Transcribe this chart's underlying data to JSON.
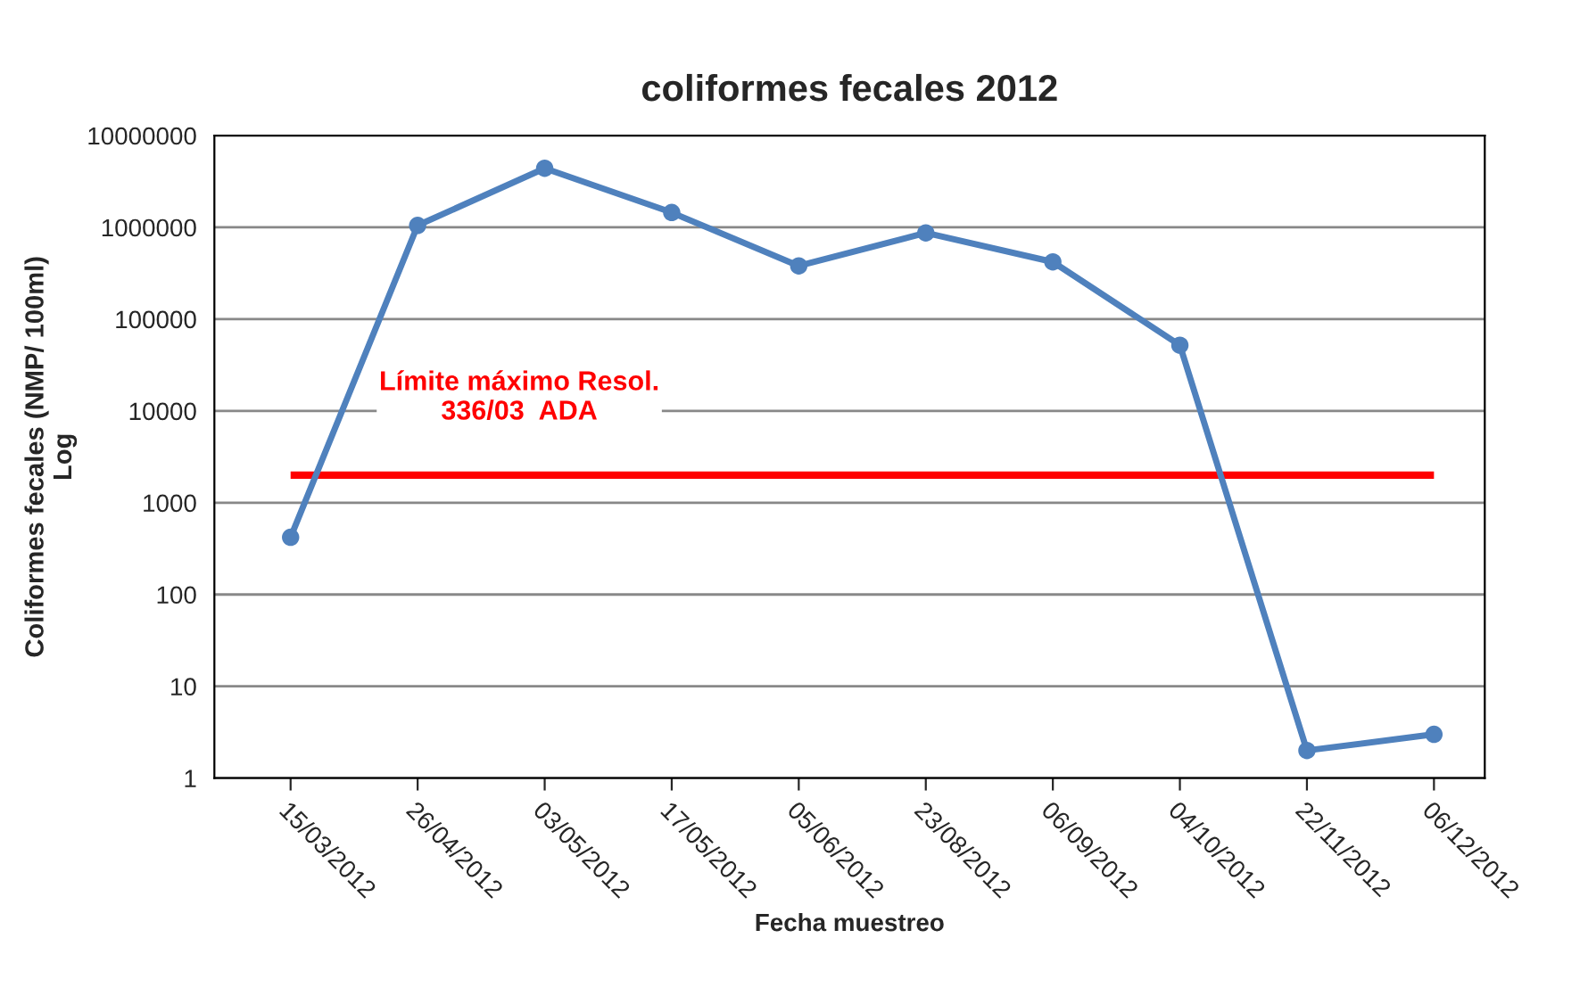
{
  "chart_data": {
    "type": "line",
    "title": "coliformes fecales 2012",
    "xlabel": "Fecha muestreo",
    "ylabel": "Coliformes fecales (NMP/ 100ml)\nLog",
    "categories": [
      "15/03/2012",
      "26/04/2012",
      "03/05/2012",
      "17/05/2012",
      "05/06/2012",
      "23/08/2012",
      "06/09/2012",
      "04/10/2012",
      "22/11/2012",
      "06/12/2012"
    ],
    "series": [
      {
        "color": "#4f81bd",
        "values": [
          420,
          1050000,
          4400000,
          1450000,
          380000,
          870000,
          420000,
          52000,
          2,
          3
        ]
      }
    ],
    "log": true,
    "ylim": [
      1,
      10000000
    ],
    "yticks": [
      1,
      10,
      100,
      1000,
      10000,
      100000,
      1000000,
      10000000
    ],
    "grid": "y",
    "marker": "circle",
    "line_style": "solid",
    "ref_lines": [
      {
        "axis": "y",
        "value": 2000,
        "label": "Límite máximo Resol.\n336/03  ADA",
        "color": "#ff0000"
      }
    ]
  }
}
